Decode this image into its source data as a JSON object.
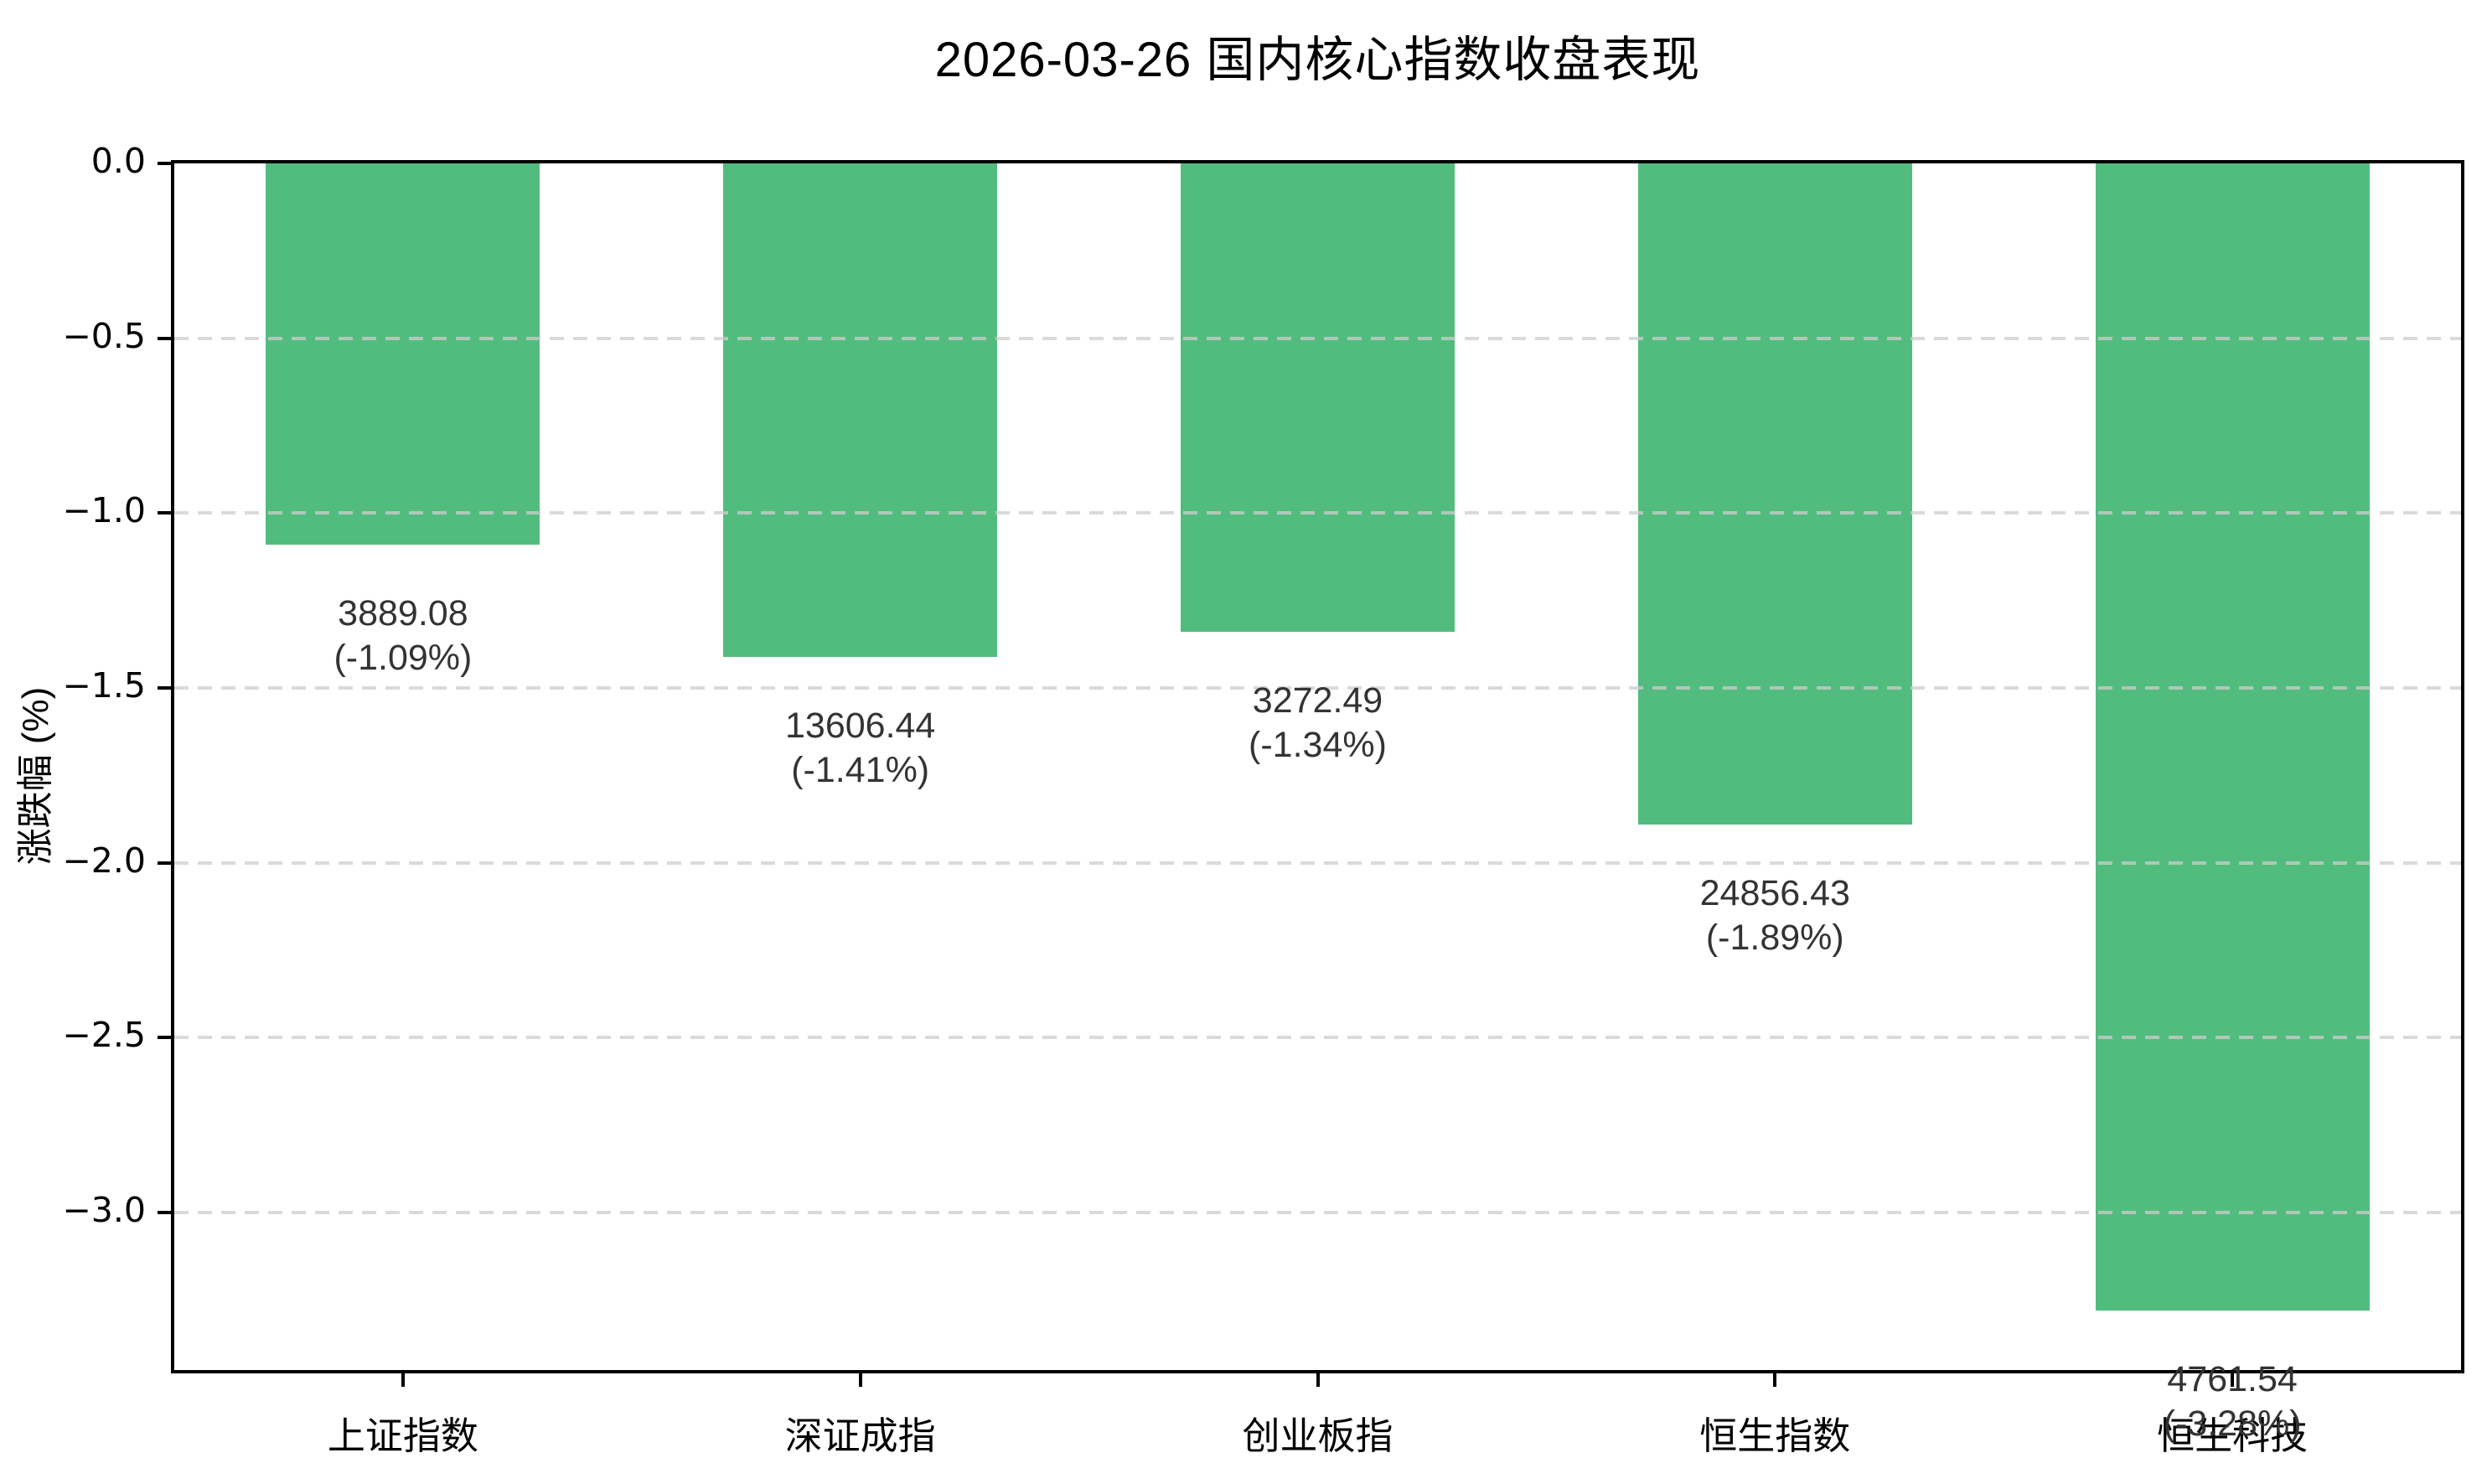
{
  "chart_data": {
    "type": "bar",
    "title": "2026-03-26 国内核心指数收盘表现",
    "xlabel": "",
    "ylabel": "涨跌幅 (%)",
    "categories": [
      "上证指数",
      "深证成指",
      "创业板指",
      "恒生指数",
      "恒生科技"
    ],
    "series": [
      {
        "name": "涨跌幅(%)",
        "values": [
          -1.09,
          -1.41,
          -1.34,
          -1.89,
          -3.28
        ]
      }
    ],
    "bar_annotations": {
      "close_values": [
        "3889.08",
        "13606.44",
        "3272.49",
        "24856.43",
        "4761.54"
      ],
      "pct_labels": [
        "(-1.09%)",
        "(-1.41%)",
        "(-1.34%)",
        "(-1.89%)",
        "(-3.28%)"
      ]
    },
    "yticks": {
      "labels": [
        "0.0",
        "−0.5",
        "−1.0",
        "−1.5",
        "−2.0",
        "−2.5",
        "−3.0"
      ],
      "values": [
        0,
        -0.5,
        -1.0,
        -1.5,
        -2.0,
        -2.5,
        -3.0
      ]
    },
    "ylim": [
      -3.45,
      0
    ],
    "grid": "horizontal-dashed",
    "legend": "none",
    "colors": {
      "bar": "#52bc7e",
      "grid": "#cdcdcd",
      "annotation_text": "#333333",
      "axis": "#000000",
      "background": "#ffffff"
    }
  }
}
